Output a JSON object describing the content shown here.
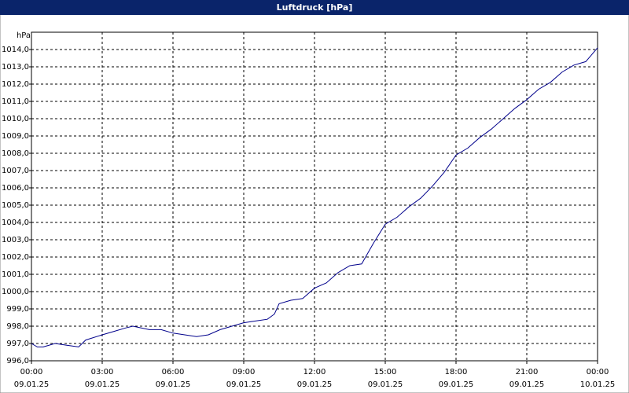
{
  "chart_data": {
    "type": "line",
    "title": "Luftdruck [hPa]",
    "y_label": "hPa",
    "x": [
      0,
      0.25,
      0.5,
      1,
      1.5,
      2,
      2.3,
      3,
      3.5,
      4,
      4.3,
      5,
      5.5,
      6,
      6.5,
      7,
      7.5,
      8,
      8.5,
      9,
      9.5,
      10,
      10.3,
      10.5,
      11,
      11.5,
      12,
      12.5,
      13,
      13.5,
      14,
      14.5,
      15,
      15.5,
      16,
      16.5,
      17,
      17.5,
      18,
      18.5,
      19,
      19.5,
      20,
      20.5,
      21,
      21.5,
      22,
      22.5,
      23,
      23.5,
      24
    ],
    "series": [
      {
        "name": "Luftdruck",
        "color": "#00008b",
        "values": [
          997.0,
          996.8,
          996.8,
          997.0,
          996.9,
          996.8,
          997.2,
          997.5,
          997.7,
          997.9,
          998.0,
          997.8,
          997.8,
          997.6,
          997.5,
          997.4,
          997.5,
          997.8,
          998.0,
          998.2,
          998.3,
          998.4,
          998.7,
          999.3,
          999.5,
          999.6,
          1000.2,
          1000.5,
          1001.1,
          1001.5,
          1001.6,
          1002.8,
          1003.9,
          1004.3,
          1004.9,
          1005.4,
          1006.1,
          1006.9,
          1007.9,
          1008.3,
          1008.9,
          1009.4,
          1010.0,
          1010.6,
          1011.1,
          1011.7,
          1012.1,
          1012.7,
          1013.1,
          1013.3,
          1014.1
        ]
      }
    ],
    "xlim": [
      0,
      24
    ],
    "xticks": [
      {
        "value": 0,
        "label": "00:00",
        "date": "09.01.25"
      },
      {
        "value": 3,
        "label": "03:00",
        "date": "09.01.25"
      },
      {
        "value": 6,
        "label": "06:00",
        "date": "09.01.25"
      },
      {
        "value": 9,
        "label": "09:00",
        "date": "09.01.25"
      },
      {
        "value": 12,
        "label": "12:00",
        "date": "09.01.25"
      },
      {
        "value": 15,
        "label": "15:00",
        "date": "09.01.25"
      },
      {
        "value": 18,
        "label": "18:00",
        "date": "09.01.25"
      },
      {
        "value": 21,
        "label": "21:00",
        "date": "09.01.25"
      },
      {
        "value": 24,
        "label": "00:00",
        "date": "10.01.25"
      }
    ],
    "ylim": [
      996,
      1015
    ],
    "yticks": [
      {
        "value": 996,
        "label": "996,0"
      },
      {
        "value": 997,
        "label": "997,0"
      },
      {
        "value": 998,
        "label": "998,0"
      },
      {
        "value": 999,
        "label": "999,0"
      },
      {
        "value": 1000,
        "label": "1000,0"
      },
      {
        "value": 1001,
        "label": "1001,0"
      },
      {
        "value": 1002,
        "label": "1002,0"
      },
      {
        "value": 1003,
        "label": "1003,0"
      },
      {
        "value": 1004,
        "label": "1004,0"
      },
      {
        "value": 1005,
        "label": "1005,0"
      },
      {
        "value": 1006,
        "label": "1006,0"
      },
      {
        "value": 1007,
        "label": "1007,0"
      },
      {
        "value": 1008,
        "label": "1008,0"
      },
      {
        "value": 1009,
        "label": "1009,0"
      },
      {
        "value": 1010,
        "label": "1010,0"
      },
      {
        "value": 1011,
        "label": "1011,0"
      },
      {
        "value": 1012,
        "label": "1012,0"
      },
      {
        "value": 1013,
        "label": "1013,0"
      },
      {
        "value": 1014,
        "label": "1014,0"
      }
    ],
    "grid": true
  }
}
